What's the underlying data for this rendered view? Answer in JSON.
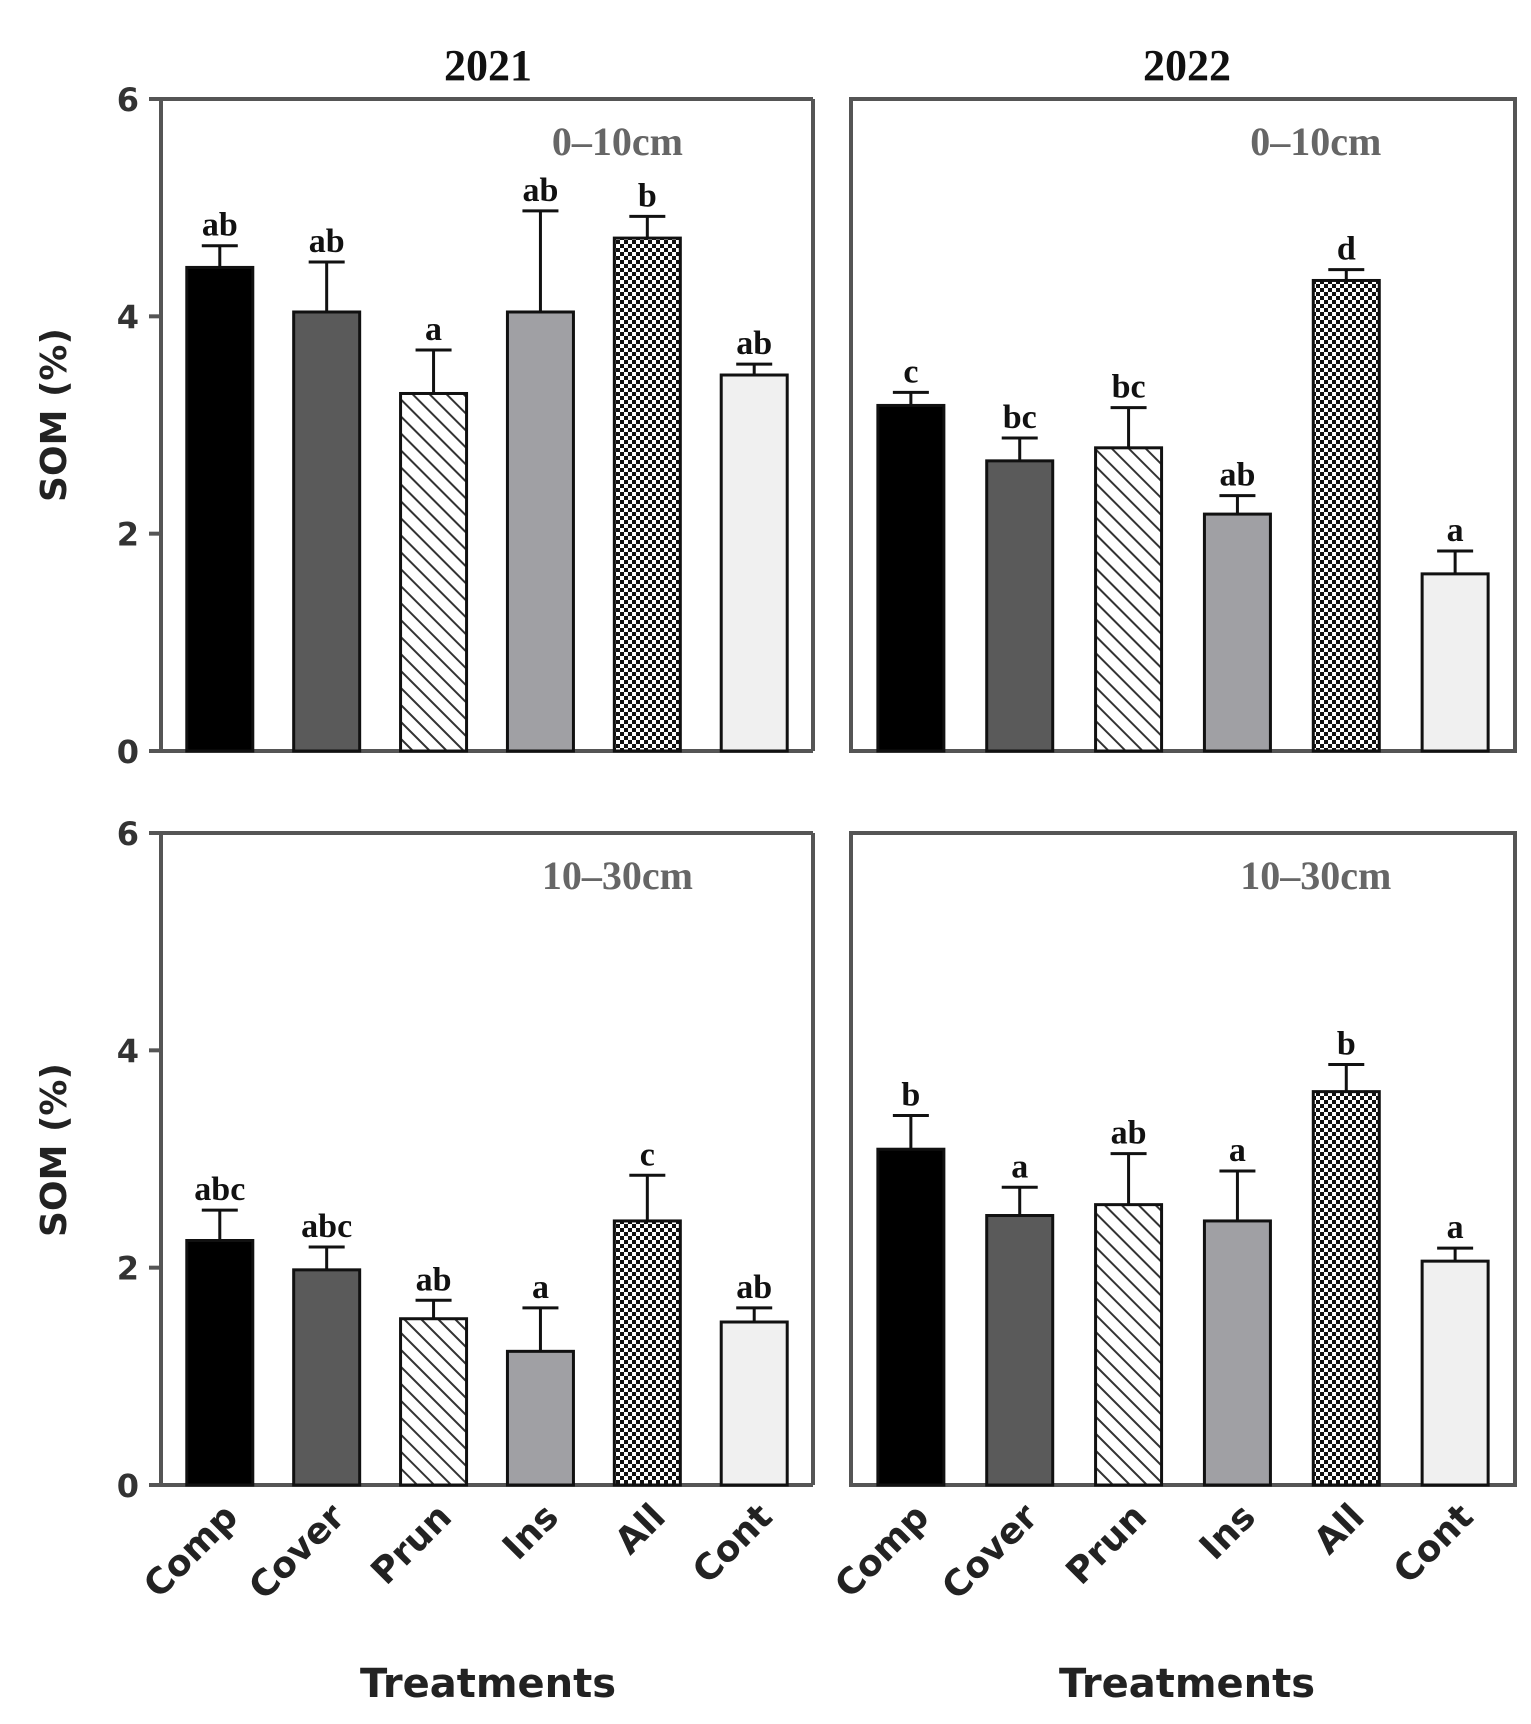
{
  "figure": {
    "ylabel": "SOM (%)",
    "xlabel": "Treatments",
    "year_titles": [
      "2021",
      "2022"
    ]
  },
  "styles": {
    "Comp": {
      "fill": "#000000",
      "pattern": "solid"
    },
    "Cover": {
      "fill": "#5a5a5a",
      "pattern": "solid"
    },
    "Prun": {
      "fill": "#ffffff",
      "pattern": "diagonal-hatch"
    },
    "Ins": {
      "fill": "#a0a0a4",
      "pattern": "solid"
    },
    "All": {
      "fill": "#ffffff",
      "pattern": "checker"
    },
    "Cont": {
      "fill": "#f0f0f0",
      "pattern": "solid"
    }
  },
  "chart_data": [
    {
      "type": "bar",
      "title": "2021",
      "annotation": "0–10cm",
      "categories": [
        "Comp",
        "Cover",
        "Prun",
        "Ins",
        "All",
        "Cont"
      ],
      "values": [
        4.45,
        4.04,
        3.29,
        4.04,
        4.72,
        3.46
      ],
      "errors": [
        0.2,
        0.46,
        0.4,
        0.93,
        0.2,
        0.1
      ],
      "letters": [
        "ab",
        "ab",
        "a",
        "ab",
        "b",
        "ab"
      ],
      "ylabel": "SOM (%)",
      "xlabel": "",
      "ylim": [
        0,
        6
      ],
      "yticks": [
        "0",
        "2",
        "4",
        "6"
      ]
    },
    {
      "type": "bar",
      "title": "2022",
      "annotation": "0–10cm",
      "categories": [
        "Comp",
        "Cover",
        "Prun",
        "Ins",
        "All",
        "Cont"
      ],
      "values": [
        3.18,
        2.67,
        2.79,
        2.18,
        4.33,
        1.63
      ],
      "errors": [
        0.12,
        0.21,
        0.37,
        0.17,
        0.1,
        0.21
      ],
      "letters": [
        "c",
        "bc",
        "bc",
        "ab",
        "d",
        "a"
      ],
      "ylabel": "",
      "xlabel": "",
      "ylim": [
        0,
        6
      ],
      "yticks": []
    },
    {
      "type": "bar",
      "title": "",
      "annotation": "10–30cm",
      "categories": [
        "Comp",
        "Cover",
        "Prun",
        "Ins",
        "All",
        "Cont"
      ],
      "values": [
        2.25,
        1.98,
        1.53,
        1.23,
        2.43,
        1.5
      ],
      "errors": [
        0.28,
        0.21,
        0.17,
        0.4,
        0.42,
        0.13
      ],
      "letters": [
        "abc",
        "abc",
        "ab",
        "a",
        "c",
        "ab"
      ],
      "ylabel": "SOM (%)",
      "xlabel": "Treatments",
      "ylim": [
        0,
        6
      ],
      "yticks": [
        "0",
        "2",
        "4",
        "6"
      ]
    },
    {
      "type": "bar",
      "title": "",
      "annotation": "10–30cm",
      "categories": [
        "Comp",
        "Cover",
        "Prun",
        "Ins",
        "All",
        "Cont"
      ],
      "values": [
        3.09,
        2.48,
        2.58,
        2.43,
        3.62,
        2.06
      ],
      "errors": [
        0.31,
        0.26,
        0.47,
        0.46,
        0.25,
        0.12
      ],
      "letters": [
        "b",
        "a",
        "ab",
        "a",
        "b",
        "a"
      ],
      "ylabel": "",
      "xlabel": "Treatments",
      "ylim": [
        0,
        6
      ],
      "yticks": []
    }
  ]
}
